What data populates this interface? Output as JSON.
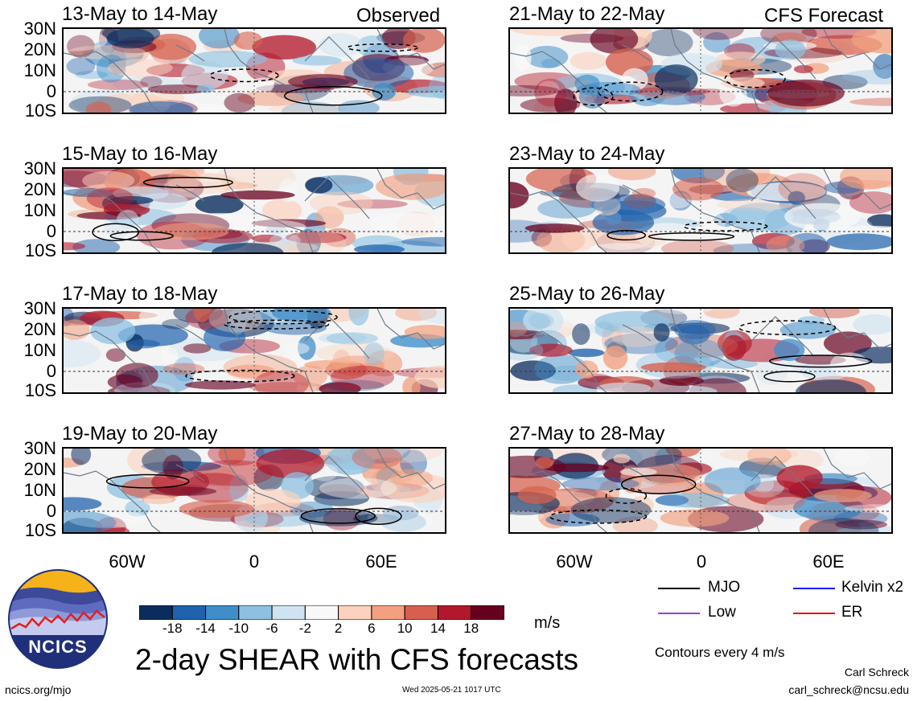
{
  "left_column_tag": "Observed",
  "right_column_tag": "CFS Forecast",
  "left_panels": [
    {
      "title": "13-May to 14-May"
    },
    {
      "title": "15-May to 16-May"
    },
    {
      "title": "17-May to 18-May"
    },
    {
      "title": "19-May to 20-May"
    }
  ],
  "right_panels": [
    {
      "title": "21-May to 22-May"
    },
    {
      "title": "23-May to 24-May"
    },
    {
      "title": "25-May to 26-May"
    },
    {
      "title": "27-May to 28-May"
    }
  ],
  "lat_labels": [
    "30N",
    "20N",
    "10N",
    "0",
    "10S"
  ],
  "lon_labels": [
    "60W",
    "0",
    "60E"
  ],
  "colorbar": {
    "labels": [
      "-18",
      "-14",
      "-10",
      "-6",
      "-2",
      "2",
      "6",
      "10",
      "14",
      "18"
    ],
    "colors": [
      "#0b2d5e",
      "#1f62ad",
      "#3f8ec9",
      "#8ec1e1",
      "#cfe3f0",
      "#f8f8f8",
      "#fbd2bd",
      "#f2a07f",
      "#d6604d",
      "#b2182b",
      "#67001f"
    ],
    "units": "m/s"
  },
  "legend": {
    "items": [
      {
        "label": "MJO",
        "color": "#000000"
      },
      {
        "label": "Kelvin x2",
        "color": "#1a1aff"
      },
      {
        "label": "Low",
        "color": "#9b3fd6"
      },
      {
        "label": "ER",
        "color": "#e01010"
      }
    ],
    "note": "Contours every 4 m/s"
  },
  "logo_text": "NCICS",
  "main_title": "2-day SHEAR with CFS forecasts",
  "footer": {
    "url": "ncics.org/mjo",
    "timestamp": "Wed 2025-05-21 1017 UTC",
    "author": "Carl Schreck",
    "email": "carl_schreck@ncsu.edu"
  }
}
